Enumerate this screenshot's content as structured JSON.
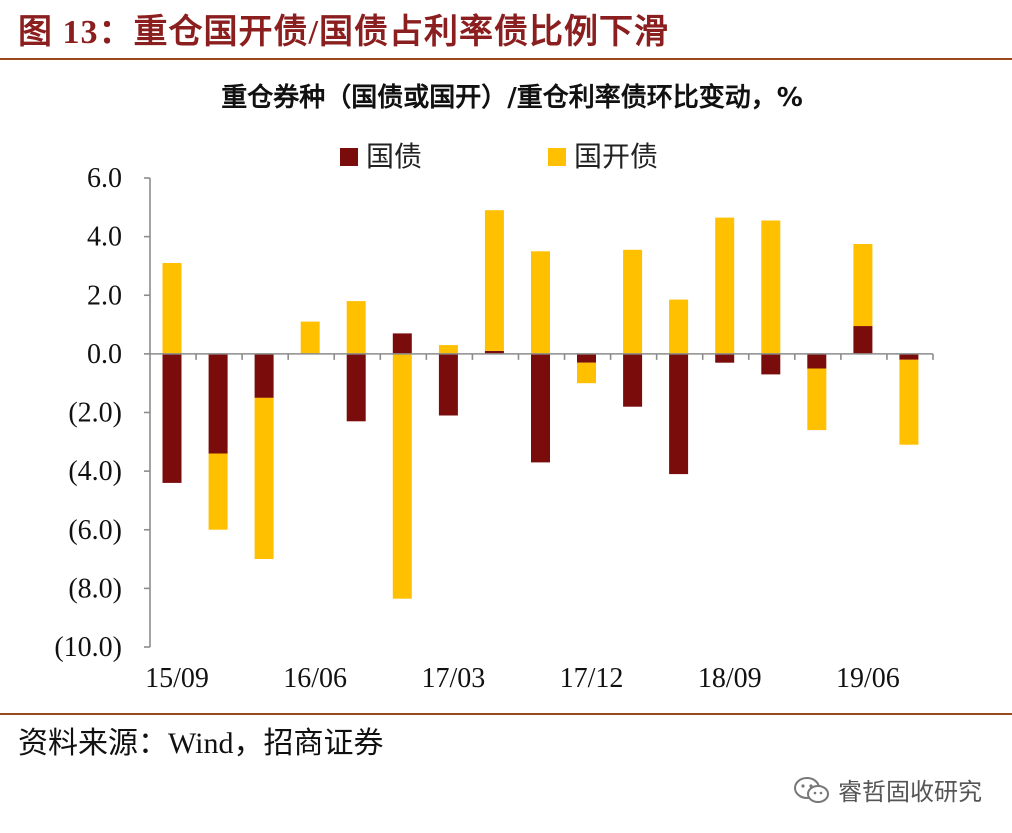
{
  "figure": {
    "title": "图 13：重仓国开债/国债占利率债比例下滑",
    "source": "资料来源：Wind，招商证券",
    "watermark": "睿哲固收研究"
  },
  "chart_data": {
    "type": "bar",
    "stacked": true,
    "title": "重仓券种（国债或国开）/重仓利率债环比变动，%",
    "xlabel": "",
    "ylabel": "",
    "ylim": [
      -10,
      6
    ],
    "yticks": [
      6,
      4,
      2,
      0,
      -2,
      -4,
      -6,
      -8,
      -10
    ],
    "ytick_labels": [
      "6.0",
      "4.0",
      "2.0",
      "0.0",
      "(2.0)",
      "(4.0)",
      "(6.0)",
      "(8.0)",
      "(10.0)"
    ],
    "xtick_labels": [
      {
        "index": 0,
        "label": "15/09"
      },
      {
        "index": 3,
        "label": "16/06"
      },
      {
        "index": 6,
        "label": "17/03"
      },
      {
        "index": 9,
        "label": "17/12"
      },
      {
        "index": 12,
        "label": "18/09"
      },
      {
        "index": 15,
        "label": "19/06"
      }
    ],
    "legend_position": "top",
    "colors": {
      "国债": "#7b0c0c",
      "国开债": "#ffc000"
    },
    "series": [
      {
        "name": "国债",
        "values": [
          -4.4,
          -3.4,
          -1.5,
          0.0,
          -2.3,
          0.7,
          -2.1,
          0.1,
          -3.7,
          -0.3,
          -1.8,
          -4.1,
          -0.3,
          -0.7,
          -0.5,
          0.95,
          -0.2
        ]
      },
      {
        "name": "国开债",
        "values": [
          3.1,
          -2.6,
          -5.5,
          1.1,
          1.8,
          -8.35,
          0.3,
          4.8,
          3.5,
          -0.7,
          3.55,
          1.85,
          4.65,
          4.55,
          -2.1,
          2.8,
          -2.9
        ]
      }
    ]
  }
}
